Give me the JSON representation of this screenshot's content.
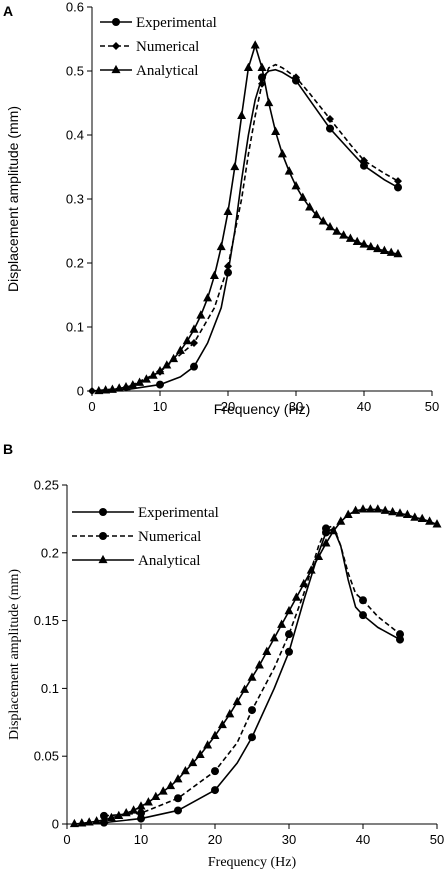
{
  "chart_data": [
    {
      "type": "line",
      "panel": "A",
      "xlabel": "Frequency (Hz)",
      "ylabel": "Displacement amplitude (mm)",
      "xlim": [
        0,
        50
      ],
      "ylim": [
        0,
        0.6
      ],
      "xticks": [
        0,
        10,
        20,
        30,
        40,
        50
      ],
      "yticks": [
        0,
        0.1,
        0.2,
        0.3,
        0.4,
        0.5,
        0.6
      ],
      "legend_position": "top-left",
      "series": [
        {
          "name": "Experimental",
          "marker": "circle",
          "dash": "solid",
          "curve": [
            [
              5,
              0.002
            ],
            [
              10,
              0.01
            ],
            [
              13,
              0.022
            ],
            [
              15,
              0.038
            ],
            [
              17,
              0.075
            ],
            [
              19,
              0.13
            ],
            [
              20,
              0.185
            ],
            [
              21,
              0.25
            ],
            [
              22,
              0.33
            ],
            [
              23,
              0.4
            ],
            [
              24,
              0.455
            ],
            [
              25,
              0.49
            ],
            [
              26,
              0.5
            ],
            [
              27,
              0.502
            ],
            [
              28,
              0.498
            ],
            [
              30,
              0.485
            ],
            [
              32,
              0.455
            ],
            [
              35,
              0.41
            ],
            [
              38,
              0.375
            ],
            [
              40,
              0.352
            ],
            [
              43,
              0.33
            ],
            [
              45,
              0.318
            ]
          ],
          "points": [
            [
              10,
              0.01
            ],
            [
              15,
              0.038
            ],
            [
              20,
              0.185
            ],
            [
              25,
              0.49
            ],
            [
              30,
              0.485
            ],
            [
              35,
              0.41
            ],
            [
              40,
              0.352
            ],
            [
              45,
              0.318
            ]
          ]
        },
        {
          "name": "Numerical",
          "marker": "diamond",
          "dash": "dashed",
          "curve": [
            [
              0,
              0
            ],
            [
              5,
              0.005
            ],
            [
              10,
              0.03
            ],
            [
              15,
              0.075
            ],
            [
              18,
              0.13
            ],
            [
              20,
              0.195
            ],
            [
              22,
              0.3
            ],
            [
              23,
              0.37
            ],
            [
              24,
              0.43
            ],
            [
              25,
              0.48
            ],
            [
              26,
              0.505
            ],
            [
              27,
              0.51
            ],
            [
              28,
              0.505
            ],
            [
              30,
              0.49
            ],
            [
              32,
              0.465
            ],
            [
              35,
              0.425
            ],
            [
              38,
              0.385
            ],
            [
              40,
              0.36
            ],
            [
              43,
              0.34
            ],
            [
              45,
              0.328
            ]
          ],
          "points": [
            [
              0,
              0
            ],
            [
              5,
              0.005
            ],
            [
              10,
              0.03
            ],
            [
              15,
              0.075
            ],
            [
              20,
              0.195
            ],
            [
              25,
              0.48
            ],
            [
              30,
              0.49
            ],
            [
              35,
              0.425
            ],
            [
              40,
              0.36
            ],
            [
              45,
              0.328
            ]
          ]
        },
        {
          "name": "Analytical",
          "marker": "triangle",
          "dash": "solid",
          "points": [
            [
              1,
              0
            ],
            [
              2,
              0.001
            ],
            [
              3,
              0.002
            ],
            [
              4,
              0.004
            ],
            [
              5,
              0.006
            ],
            [
              6,
              0.009
            ],
            [
              7,
              0.013
            ],
            [
              8,
              0.018
            ],
            [
              9,
              0.024
            ],
            [
              10,
              0.031
            ],
            [
              11,
              0.04
            ],
            [
              12,
              0.05
            ],
            [
              13,
              0.063
            ],
            [
              14,
              0.078
            ],
            [
              15,
              0.096
            ],
            [
              16,
              0.118
            ],
            [
              17,
              0.145
            ],
            [
              18,
              0.18
            ],
            [
              19,
              0.225
            ],
            [
              20,
              0.28
            ],
            [
              21,
              0.35
            ],
            [
              22,
              0.43
            ],
            [
              23,
              0.505
            ],
            [
              24,
              0.54
            ],
            [
              25,
              0.505
            ],
            [
              26,
              0.45
            ],
            [
              27,
              0.405
            ],
            [
              28,
              0.37
            ],
            [
              29,
              0.343
            ],
            [
              30,
              0.32
            ],
            [
              31,
              0.302
            ],
            [
              32,
              0.287
            ],
            [
              33,
              0.275
            ],
            [
              34,
              0.265
            ],
            [
              35,
              0.256
            ],
            [
              36,
              0.249
            ],
            [
              37,
              0.243
            ],
            [
              38,
              0.238
            ],
            [
              39,
              0.233
            ],
            [
              40,
              0.229
            ],
            [
              41,
              0.225
            ],
            [
              42,
              0.222
            ],
            [
              43,
              0.219
            ],
            [
              44,
              0.216
            ],
            [
              45,
              0.214
            ]
          ]
        }
      ]
    },
    {
      "type": "line",
      "panel": "B",
      "xlabel": "Frequency (Hz)",
      "ylabel": "Displacement amplitude (mm)",
      "xlim": [
        0,
        50
      ],
      "ylim": [
        0,
        0.25
      ],
      "xticks": [
        0,
        10,
        20,
        30,
        40,
        50
      ],
      "yticks": [
        0,
        0.05,
        0.1,
        0.15,
        0.2,
        0.25
      ],
      "legend_position": "top-left",
      "series": [
        {
          "name": "Experimental",
          "marker": "circle",
          "dash": "solid",
          "curve": [
            [
              5,
              0.001
            ],
            [
              10,
              0.004
            ],
            [
              15,
              0.01
            ],
            [
              20,
              0.025
            ],
            [
              23,
              0.045
            ],
            [
              25,
              0.064
            ],
            [
              28,
              0.1
            ],
            [
              30,
              0.127
            ],
            [
              32,
              0.165
            ],
            [
              34,
              0.2
            ],
            [
              35,
              0.215
            ],
            [
              36,
              0.218
            ],
            [
              37,
              0.205
            ],
            [
              38,
              0.18
            ],
            [
              39,
              0.16
            ],
            [
              40,
              0.154
            ],
            [
              42,
              0.145
            ],
            [
              45,
              0.136
            ]
          ],
          "points": [
            [
              5,
              0.001
            ],
            [
              10,
              0.004
            ],
            [
              15,
              0.01
            ],
            [
              20,
              0.025
            ],
            [
              25,
              0.064
            ],
            [
              30,
              0.127
            ],
            [
              35,
              0.215
            ],
            [
              40,
              0.154
            ],
            [
              45,
              0.136
            ]
          ]
        },
        {
          "name": "Numerical",
          "marker": "circle",
          "dash": "dashed",
          "curve": [
            [
              5,
              0.006
            ],
            [
              10,
              0.008
            ],
            [
              15,
              0.019
            ],
            [
              20,
              0.039
            ],
            [
              23,
              0.06
            ],
            [
              25,
              0.084
            ],
            [
              28,
              0.115
            ],
            [
              30,
              0.14
            ],
            [
              32,
              0.17
            ],
            [
              34,
              0.205
            ],
            [
              35,
              0.218
            ],
            [
              36,
              0.22
            ],
            [
              37,
              0.205
            ],
            [
              38,
              0.185
            ],
            [
              39,
              0.17
            ],
            [
              40,
              0.165
            ],
            [
              42,
              0.153
            ],
            [
              45,
              0.14
            ]
          ],
          "points": [
            [
              5,
              0.006
            ],
            [
              10,
              0.008
            ],
            [
              15,
              0.019
            ],
            [
              20,
              0.039
            ],
            [
              25,
              0.084
            ],
            [
              30,
              0.14
            ],
            [
              35,
              0.218
            ],
            [
              40,
              0.165
            ],
            [
              45,
              0.14
            ]
          ]
        },
        {
          "name": "Analytical",
          "marker": "triangle",
          "dash": "solid",
          "points": [
            [
              1,
              0
            ],
            [
              2,
              0.0005
            ],
            [
              3,
              0.0012
            ],
            [
              4,
              0.002
            ],
            [
              5,
              0.003
            ],
            [
              6,
              0.0045
            ],
            [
              7,
              0.006
            ],
            [
              8,
              0.008
            ],
            [
              9,
              0.01
            ],
            [
              10,
              0.013
            ],
            [
              11,
              0.016
            ],
            [
              12,
              0.02
            ],
            [
              13,
              0.024
            ],
            [
              14,
              0.028
            ],
            [
              15,
              0.033
            ],
            [
              16,
              0.039
            ],
            [
              17,
              0.045
            ],
            [
              18,
              0.051
            ],
            [
              19,
              0.058
            ],
            [
              20,
              0.065
            ],
            [
              21,
              0.073
            ],
            [
              22,
              0.081
            ],
            [
              23,
              0.09
            ],
            [
              24,
              0.099
            ],
            [
              25,
              0.108
            ],
            [
              26,
              0.117
            ],
            [
              27,
              0.127
            ],
            [
              28,
              0.137
            ],
            [
              29,
              0.147
            ],
            [
              30,
              0.157
            ],
            [
              31,
              0.167
            ],
            [
              32,
              0.177
            ],
            [
              33,
              0.187
            ],
            [
              34,
              0.197
            ],
            [
              35,
              0.207
            ],
            [
              36,
              0.216
            ],
            [
              37,
              0.223
            ],
            [
              38,
              0.228
            ],
            [
              39,
              0.231
            ],
            [
              40,
              0.232
            ],
            [
              41,
              0.232
            ],
            [
              42,
              0.232
            ],
            [
              43,
              0.231
            ],
            [
              44,
              0.23
            ],
            [
              45,
              0.229
            ],
            [
              46,
              0.228
            ],
            [
              47,
              0.226
            ],
            [
              48,
              0.225
            ],
            [
              49,
              0.223
            ],
            [
              50,
              0.221
            ]
          ]
        }
      ]
    }
  ]
}
